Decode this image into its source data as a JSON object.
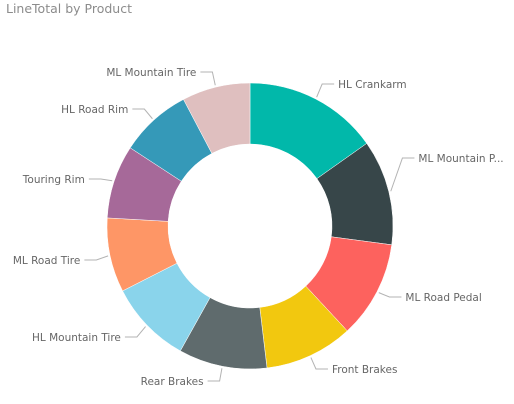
{
  "chart_data": {
    "type": "pie",
    "variant": "donut",
    "title": "LineTotal by Product",
    "legend": "none",
    "slices": [
      {
        "label": "HL Crankarm",
        "value": 15.2,
        "color": "#01B8AA"
      },
      {
        "label": "ML Mountain P...",
        "value": 11.9,
        "color": "#374649"
      },
      {
        "label": "ML Road Pedal",
        "value": 11.0,
        "color": "#FD625E"
      },
      {
        "label": "Front Brakes",
        "value": 10.0,
        "color": "#F2C80F"
      },
      {
        "label": "Rear Brakes",
        "value": 10.0,
        "color": "#5F6B6D"
      },
      {
        "label": "HL Mountain Tire",
        "value": 9.4,
        "color": "#8AD4EB"
      },
      {
        "label": "ML Road Tire",
        "value": 8.4,
        "color": "#FE9666"
      },
      {
        "label": "Touring Rim",
        "value": 8.3,
        "color": "#A66999"
      },
      {
        "label": "HL Road Rim",
        "value": 8.1,
        "color": "#3599B8"
      },
      {
        "label": "ML Mountain Tire",
        "value": 7.7,
        "color": "#DFBFBF"
      }
    ]
  }
}
